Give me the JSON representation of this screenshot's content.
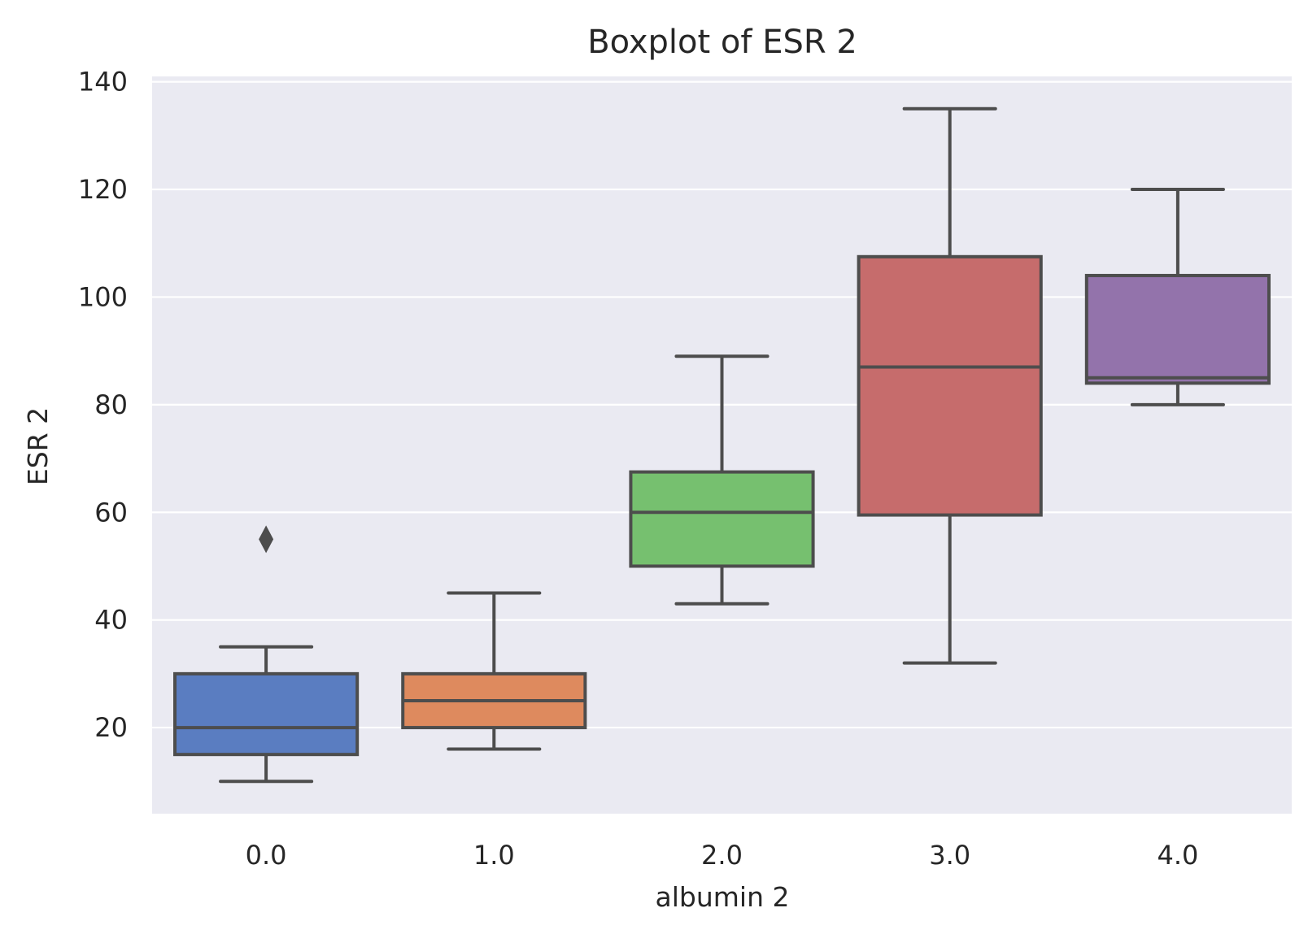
{
  "chart_data": {
    "type": "box",
    "title": "Boxplot of ESR 2",
    "xlabel": "albumin 2",
    "ylabel": "ESR 2",
    "categories": [
      "0.0",
      "1.0",
      "2.0",
      "3.0",
      "4.0"
    ],
    "ylim": [
      4,
      141
    ],
    "yticks": [
      20,
      40,
      60,
      80,
      100,
      120,
      140
    ],
    "grid": true,
    "background": "#eaeaf2",
    "edge_color": "#4d4d4d",
    "boxes": [
      {
        "category": "0.0",
        "whisker_low": 10,
        "q1": 15,
        "median": 20,
        "q3": 30,
        "whisker_high": 35,
        "outliers": [
          55
        ],
        "color": "#5a7dc1"
      },
      {
        "category": "1.0",
        "whisker_low": 16,
        "q1": 20,
        "median": 25,
        "q3": 30,
        "whisker_high": 45,
        "outliers": [],
        "color": "#de8a5e"
      },
      {
        "category": "2.0",
        "whisker_low": 43,
        "q1": 50,
        "median": 60,
        "q3": 67.5,
        "whisker_high": 89,
        "outliers": [],
        "color": "#76c06f"
      },
      {
        "category": "3.0",
        "whisker_low": 32,
        "q1": 59.5,
        "median": 87,
        "q3": 107.5,
        "whisker_high": 135,
        "outliers": [],
        "color": "#c66c6c"
      },
      {
        "category": "4.0",
        "whisker_low": 80,
        "q1": 84,
        "median": 85,
        "q3": 104,
        "whisker_high": 120,
        "outliers": [],
        "color": "#9373ab"
      }
    ]
  }
}
